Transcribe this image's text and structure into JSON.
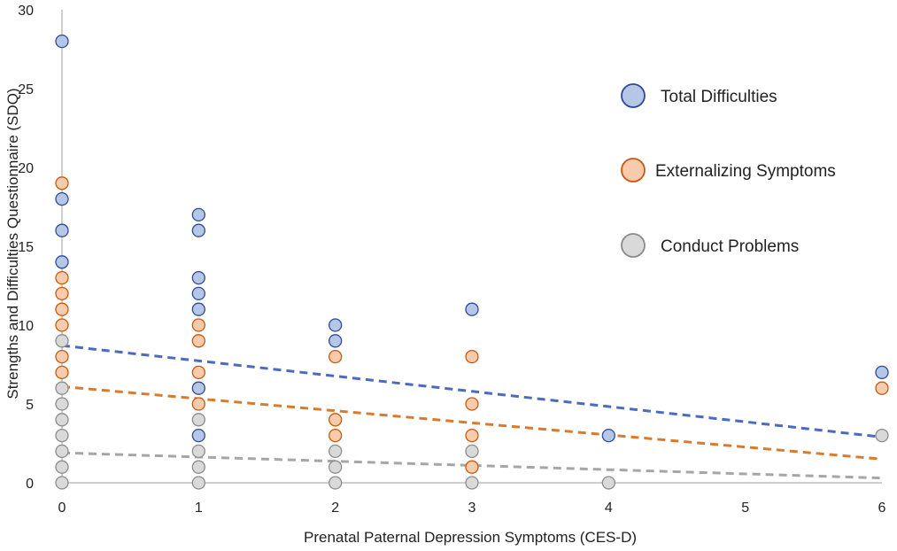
{
  "chart_data": {
    "type": "scatter",
    "title": "",
    "xlabel": "Prenatal Paternal Depression Symptoms (CES-D)",
    "ylabel": "Strengths and Difficulties Questionnaire (SDQ)",
    "xlim": [
      0,
      6
    ],
    "ylim": [
      0,
      30
    ],
    "x_ticks": [
      0,
      1,
      2,
      3,
      4,
      5,
      6
    ],
    "y_ticks": [
      0,
      5,
      10,
      15,
      20,
      25,
      30
    ],
    "grid": false,
    "legend_position": "right",
    "series": [
      {
        "name": "Total Difficulties",
        "fill": "#b4c7e7",
        "stroke": "#2f4a9a",
        "trend_color": "#4a6bc0",
        "points": [
          [
            0,
            28
          ],
          [
            0,
            18
          ],
          [
            0,
            16
          ],
          [
            0,
            14
          ],
          [
            1,
            17
          ],
          [
            1,
            16
          ],
          [
            1,
            13
          ],
          [
            1,
            12
          ],
          [
            1,
            11
          ],
          [
            1,
            6
          ],
          [
            1,
            3
          ],
          [
            2,
            10
          ],
          [
            2,
            9
          ],
          [
            3,
            11
          ],
          [
            4,
            3
          ],
          [
            6,
            7
          ]
        ],
        "trend": [
          [
            0,
            8.7
          ],
          [
            6,
            2.9
          ]
        ]
      },
      {
        "name": "Externalizing Symptoms",
        "fill": "#f8cbad",
        "stroke": "#c55a11",
        "trend_color": "#d97b2f",
        "points": [
          [
            0,
            19
          ],
          [
            0,
            13
          ],
          [
            0,
            12
          ],
          [
            0,
            11
          ],
          [
            0,
            10
          ],
          [
            0,
            8
          ],
          [
            0,
            7
          ],
          [
            1,
            10
          ],
          [
            1,
            9
          ],
          [
            1,
            7
          ],
          [
            1,
            5
          ],
          [
            2,
            8
          ],
          [
            2,
            4
          ],
          [
            2,
            3
          ],
          [
            3,
            8
          ],
          [
            3,
            5
          ],
          [
            3,
            3
          ],
          [
            3,
            1
          ],
          [
            6,
            6
          ]
        ],
        "trend": [
          [
            0,
            6.1
          ],
          [
            6,
            1.5
          ]
        ]
      },
      {
        "name": "Conduct Problems",
        "fill": "#d9d9d9",
        "stroke": "#8c8c8c",
        "trend_color": "#a6a6a6",
        "points": [
          [
            0,
            9
          ],
          [
            0,
            6
          ],
          [
            0,
            5
          ],
          [
            0,
            4
          ],
          [
            0,
            3
          ],
          [
            0,
            2
          ],
          [
            0,
            1
          ],
          [
            0,
            0
          ],
          [
            1,
            4
          ],
          [
            1,
            2
          ],
          [
            1,
            1
          ],
          [
            1,
            0
          ],
          [
            2,
            2
          ],
          [
            2,
            1
          ],
          [
            2,
            0
          ],
          [
            3,
            2
          ],
          [
            3,
            0
          ],
          [
            4,
            0
          ],
          [
            6,
            3
          ]
        ],
        "trend": [
          [
            0,
            1.9
          ],
          [
            6,
            0.3
          ]
        ]
      }
    ]
  }
}
